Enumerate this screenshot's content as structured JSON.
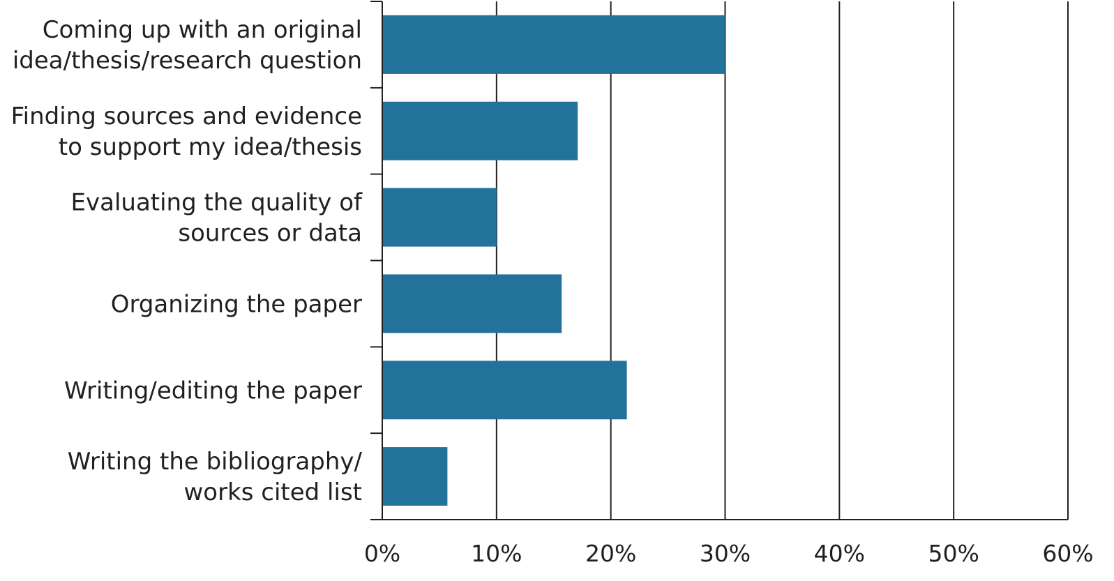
{
  "chart_data": {
    "type": "bar",
    "orientation": "horizontal",
    "title": "",
    "xlabel": "",
    "ylabel": "",
    "categories": [
      [
        "Coming up with an original",
        "idea/thesis/research question"
      ],
      [
        "Finding sources and evidence",
        "to support my idea/thesis"
      ],
      [
        "Evaluating the quality of",
        "sources or data"
      ],
      [
        "Organizing the paper"
      ],
      [
        "Writing/editing the paper"
      ],
      [
        "Writing the bibliography/",
        "works cited list"
      ]
    ],
    "values": [
      30,
      17.1,
      10,
      15.7,
      21.4,
      5.7
    ],
    "value_unit": "%",
    "xlim": [
      0,
      60
    ],
    "xticks": [
      0,
      10,
      20,
      30,
      40,
      50,
      60
    ],
    "xtick_labels": [
      "0%",
      "10%",
      "20%",
      "30%",
      "40%",
      "50%",
      "60%"
    ],
    "grid": "vertical",
    "legend": "none",
    "bar_color": "#23729c"
  }
}
